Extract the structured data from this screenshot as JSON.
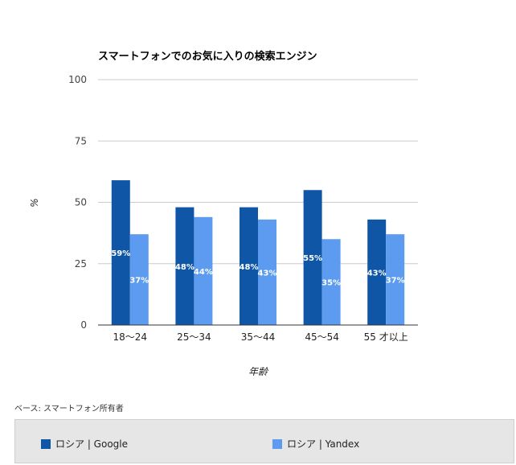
{
  "footnote": "ベース: スマートフォン所有者",
  "legend": {
    "items": [
      {
        "label": "ロシア | Google",
        "color": "#0f57a6"
      },
      {
        "label": "ロシア | Yandex",
        "color": "#5c9bf0"
      }
    ]
  },
  "chart_data": {
    "type": "bar",
    "title": "スマートフォンでのお気に入りの検索エンジン",
    "xlabel": "年齢",
    "ylabel": "%",
    "ylim": [
      0,
      100
    ],
    "yticks": [
      0,
      25,
      50,
      75,
      100
    ],
    "grid": true,
    "legend_position": "bottom",
    "categories": [
      "18〜24",
      "25〜34",
      "35〜44",
      "45〜54",
      "55 才以上"
    ],
    "series": [
      {
        "name": "ロシア | Google",
        "color": "#0f57a6",
        "values": [
          59,
          48,
          48,
          55,
          43
        ],
        "labels": [
          "59%",
          "48%",
          "48%",
          "55%",
          "43%"
        ]
      },
      {
        "name": "ロシア | Yandex",
        "color": "#5c9bf0",
        "values": [
          37,
          44,
          43,
          35,
          37
        ],
        "labels": [
          "37%",
          "44%",
          "43%",
          "35%",
          "37%"
        ]
      }
    ]
  }
}
